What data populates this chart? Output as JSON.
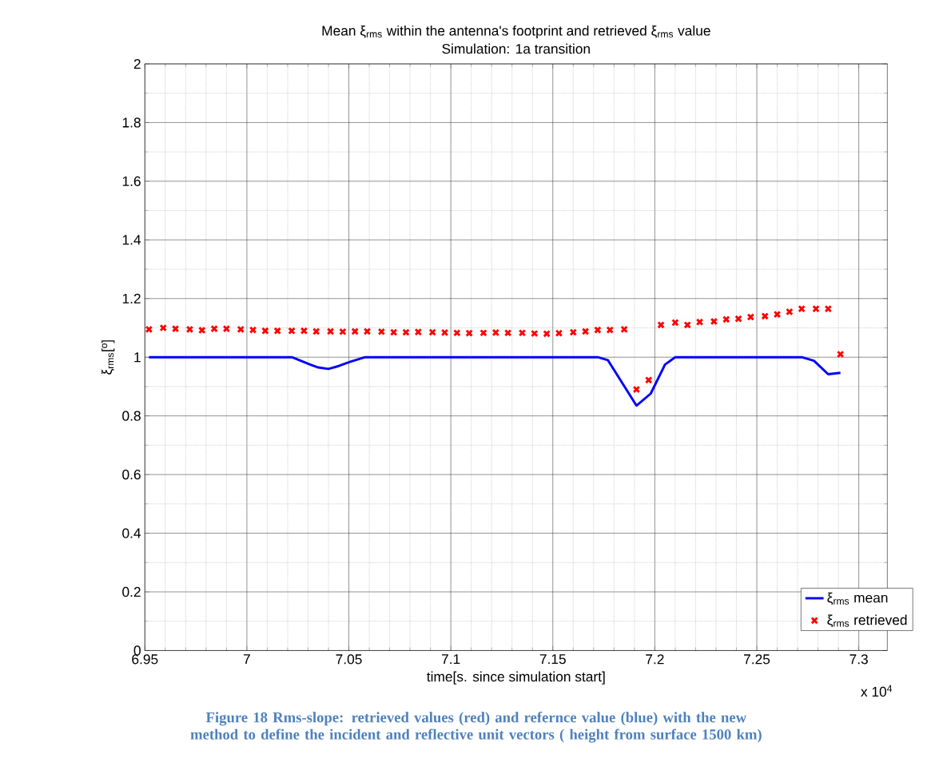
{
  "chart_data": {
    "type": "line",
    "title": "Mean ξ$_{rms}$ within the antenna's footprint and retrieved ξ$_{rms}$ value",
    "subtitle": "Simulation: 1a transition",
    "xlabel": "time[s. since simulation start]",
    "ylabel": "ξ$_{rms}$[º]",
    "annotations": [
      "x 10$^{4}$",
      "Figure 18 Rms-slope: retrieved values (red) and refernce value (blue) with the new method to define the incident and reflective unit vectors ( height from surface 1500 km)"
    ],
    "xlim": [
      6.95,
      7.314
    ],
    "ylim": [
      0,
      2
    ],
    "xticks": [
      6.95,
      7,
      7.05,
      7.1,
      7.15,
      7.2,
      7.25,
      7.3
    ],
    "yticks": [
      0,
      0.2,
      0.4,
      0.6,
      0.8,
      1,
      1.2,
      1.4,
      1.6,
      1.8,
      2
    ],
    "grid": true,
    "legend": "bottom right",
    "series": [
      {
        "name": "ξ$_{rms}$ mean",
        "color": "#0000ff",
        "marker": "none",
        "line_style": "solid",
        "x": [
          6.952,
          7.022,
          7.024,
          7.031,
          7.035,
          7.04,
          7.045,
          7.051,
          7.058,
          7.172,
          7.177,
          7.191,
          7.198,
          7.205,
          7.21,
          7.272,
          7.278,
          7.285,
          7.291
        ],
        "values": [
          1.0,
          1.0,
          0.995,
          0.975,
          0.965,
          0.96,
          0.97,
          0.985,
          1.0,
          1.0,
          0.99,
          0.835,
          0.876,
          0.975,
          1.0,
          1.0,
          0.988,
          0.942,
          0.947
        ]
      },
      {
        "name": "ξ$_{rms}$ retrieved",
        "type": "scatter",
        "color": "#ff0000",
        "marker": "cross",
        "x": [
          6.952,
          6.959,
          6.965,
          6.972,
          6.978,
          6.984,
          6.99,
          6.997,
          7.003,
          7.009,
          7.015,
          7.022,
          7.028,
          7.034,
          7.041,
          7.047,
          7.053,
          7.059,
          7.066,
          7.072,
          7.078,
          7.084,
          7.091,
          7.097,
          7.103,
          7.109,
          7.116,
          7.122,
          7.128,
          7.135,
          7.141,
          7.147,
          7.153,
          7.16,
          7.166,
          7.172,
          7.178,
          7.185,
          7.191,
          7.197,
          7.203,
          7.21,
          7.216,
          7.222,
          7.229,
          7.235,
          7.241,
          7.247,
          7.254,
          7.26,
          7.266,
          7.272,
          7.279,
          7.285,
          7.291
        ],
        "values": [
          1.095,
          1.1,
          1.097,
          1.095,
          1.092,
          1.097,
          1.097,
          1.095,
          1.093,
          1.09,
          1.09,
          1.09,
          1.09,
          1.088,
          1.088,
          1.087,
          1.088,
          1.088,
          1.087,
          1.085,
          1.085,
          1.086,
          1.085,
          1.084,
          1.083,
          1.082,
          1.083,
          1.084,
          1.083,
          1.083,
          1.081,
          1.08,
          1.082,
          1.085,
          1.088,
          1.093,
          1.093,
          1.095,
          0.89,
          0.922,
          1.11,
          1.118,
          1.11,
          1.12,
          1.122,
          1.129,
          1.131,
          1.137,
          1.14,
          1.146,
          1.155,
          1.165,
          1.165,
          1.165,
          1.01
        ]
      }
    ]
  }
}
